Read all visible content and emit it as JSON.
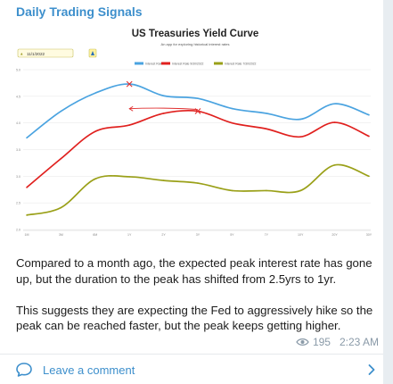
{
  "channel": {
    "title": "Daily Trading Signals"
  },
  "chart_image": {
    "title": "US Treasuries Yield Curve",
    "subtitle": "An app for exploring historical interest rates",
    "date_picker_value": "11/1/2022",
    "icons": [
      "calendar-icon",
      "refresh-icon"
    ],
    "colors": {
      "interest_rate": "#4aa3e0",
      "interest_rate_2": "#e0201e",
      "interest_rate_3": "#9aa018",
      "annotation": "#e03030"
    },
    "chart_data": {
      "type": "line",
      "title": "US Treasuries Yield Curve",
      "legend_position": "top",
      "grid": true,
      "ylim": [
        2.0,
        5.0
      ],
      "y_ticks": [
        "2.0",
        "2.5",
        "3.0",
        "3.5",
        "4.0",
        "4.5",
        "5.0"
      ],
      "categories": [
        "1M",
        "3M",
        "6M",
        "1Y",
        "2Y",
        "3Y",
        "5Y",
        "7Y",
        "10Y",
        "20Y",
        "30Y"
      ],
      "series": [
        {
          "name": "Interest Rate",
          "color": "#4aa3e0",
          "values": [
            3.72,
            4.22,
            4.56,
            4.73,
            4.51,
            4.46,
            4.27,
            4.18,
            4.07,
            4.36,
            4.15
          ]
        },
        {
          "name": "Interest Rate 9/30/2022",
          "color": "#e0201e",
          "values": [
            2.79,
            3.33,
            3.84,
            3.96,
            4.18,
            4.22,
            4.0,
            3.89,
            3.74,
            4.01,
            3.75
          ]
        },
        {
          "name": "Interest Rate 7/30/2022",
          "color": "#9aa018",
          "values": [
            2.27,
            2.41,
            2.95,
            2.99,
            2.92,
            2.87,
            2.73,
            2.73,
            2.73,
            3.21,
            3.0
          ]
        }
      ],
      "annotations": [
        {
          "type": "cross",
          "category": "1Y",
          "value": 4.73
        },
        {
          "type": "cross",
          "category": "3Y",
          "value": 4.22
        },
        {
          "type": "arrow",
          "from_category": "3Y",
          "to_category": "1Y",
          "value": 4.25
        }
      ]
    }
  },
  "caption": {
    "paragraph_1": "Compared to a month ago, the expected peak interest rate has gone up, but the duration to the peak has shifted from 2.5yrs to 1yr.",
    "paragraph_2": "This suggests they are expecting the Fed to aggressively hike so the peak can be reached faster, but the peak keeps getting higher."
  },
  "meta": {
    "views": "195",
    "time": "2:23 AM",
    "views_icon": "eye-icon"
  },
  "comment": {
    "label": "Leave a comment",
    "icon": "comment-icon",
    "chevron": "chevron-right-icon"
  }
}
